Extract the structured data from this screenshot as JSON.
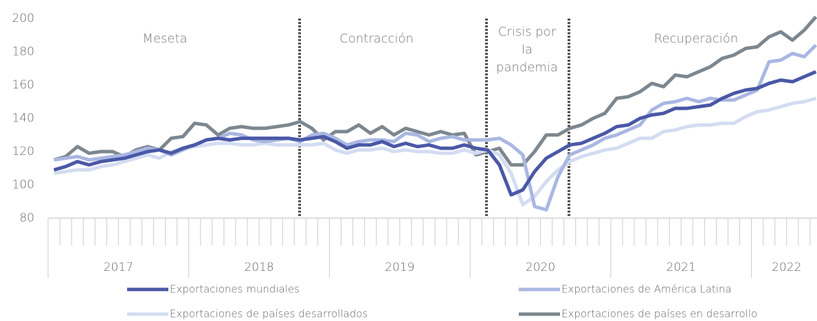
{
  "chart_data": {
    "type": "line",
    "year_labels": [
      "2017",
      "2018",
      "2019",
      "2020",
      "2021",
      "2022"
    ],
    "annotations": [
      "Meseta",
      "Contracción",
      "Crisis por",
      "la",
      "pandemia",
      "Recuperación"
    ],
    "ylim": [
      80,
      200
    ],
    "yticks": [
      80,
      100,
      120,
      140,
      160,
      180,
      200
    ],
    "grid": false,
    "series": [
      {
        "name": "Exportaciones mundiales",
        "color": "#4a58a6",
        "values": [
          109,
          111,
          114,
          112,
          114,
          115,
          116,
          118,
          120,
          121,
          119,
          122,
          124,
          127,
          128,
          127,
          128,
          128,
          128,
          128,
          128,
          127,
          128,
          129,
          126,
          122,
          124,
          124,
          126,
          123,
          125,
          123,
          124,
          122,
          122,
          124,
          122,
          121,
          112,
          94,
          97,
          108,
          116,
          120,
          124,
          125,
          128,
          131,
          135,
          136,
          140,
          142,
          143,
          146,
          146,
          147,
          148,
          152,
          155,
          157,
          158,
          161,
          163,
          162,
          165,
          168
        ]
      },
      {
        "name": "Exportaciones de América Latina",
        "color": "#a9b7e2",
        "values": [
          115,
          116,
          117,
          115,
          116,
          117,
          118,
          120,
          122,
          121,
          118,
          121,
          124,
          127,
          128,
          131,
          130,
          127,
          126,
          127,
          128,
          126,
          130,
          131,
          128,
          124,
          126,
          127,
          127,
          126,
          131,
          130,
          126,
          128,
          129,
          127,
          127,
          127,
          128,
          124,
          118,
          87,
          85,
          105,
          118,
          121,
          124,
          128,
          130,
          133,
          136,
          145,
          149,
          150,
          152,
          150,
          152,
          151,
          151,
          154,
          157,
          174,
          175,
          179,
          177,
          184
        ]
      },
      {
        "name": "Exportaciones de países desarrollados",
        "color": "#d3dcf1",
        "values": [
          107,
          108,
          109,
          109,
          111,
          112,
          114,
          116,
          118,
          116,
          120,
          122,
          123,
          124,
          125,
          125,
          124,
          124,
          125,
          124,
          124,
          124,
          124,
          125,
          121,
          119,
          121,
          121,
          122,
          120,
          121,
          120,
          120,
          119,
          119,
          121,
          119,
          121,
          118,
          107,
          88,
          93,
          102,
          109,
          114,
          117,
          119,
          121,
          122,
          125,
          128,
          128,
          132,
          133,
          135,
          136,
          136,
          137,
          137,
          141,
          144,
          145,
          147,
          149,
          150,
          152
        ]
      },
      {
        "name": "Exportaciones de países en desarrollo",
        "color": "#7d878f",
        "values": [
          115,
          117,
          123,
          119,
          120,
          120,
          117,
          121,
          123,
          121,
          128,
          129,
          137,
          136,
          130,
          134,
          135,
          134,
          134,
          135,
          136,
          138,
          134,
          127,
          132,
          132,
          136,
          131,
          135,
          130,
          134,
          132,
          130,
          132,
          130,
          131,
          118,
          120,
          122,
          112,
          112,
          120,
          130,
          130,
          134,
          136,
          140,
          143,
          152,
          153,
          156,
          161,
          159,
          166,
          165,
          168,
          171,
          176,
          178,
          182,
          183,
          189,
          192,
          187,
          193,
          201
        ]
      }
    ]
  }
}
